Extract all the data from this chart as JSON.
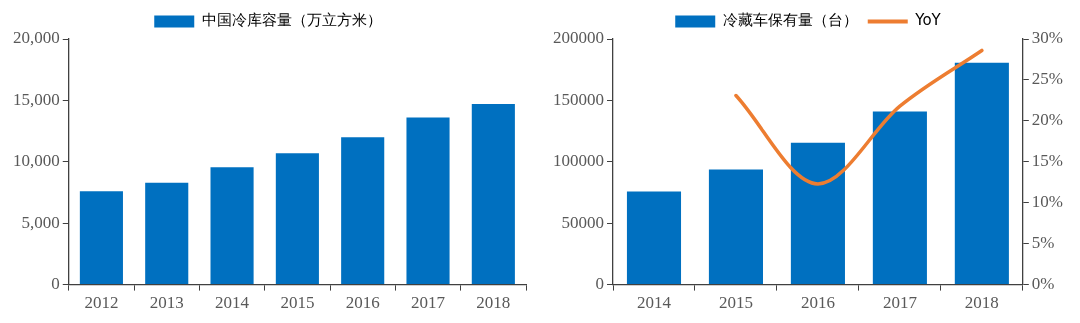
{
  "chart_data": [
    {
      "type": "bar",
      "categories": [
        "2012",
        "2013",
        "2014",
        "2015",
        "2016",
        "2017",
        "2018"
      ],
      "series": [
        {
          "name": "中国冷库容量（万立方米）",
          "color": "#0070c0",
          "values": [
            7600,
            8300,
            9550,
            10700,
            12000,
            13600,
            14700
          ]
        }
      ],
      "ylim": [
        0,
        20000
      ],
      "yticks": [
        {
          "value": 0,
          "label": "0"
        },
        {
          "value": 5000,
          "label": "5,000"
        },
        {
          "value": 10000,
          "label": "10,000"
        },
        {
          "value": 15000,
          "label": "15,000"
        },
        {
          "value": 20000,
          "label": "20,000"
        }
      ],
      "grid": false,
      "legend": "top"
    },
    {
      "type": "bar",
      "categories": [
        "2014",
        "2015",
        "2016",
        "2017",
        "2018"
      ],
      "series": [
        {
          "name": "冷藏车保有量（台）",
          "color": "#0070c0",
          "values": [
            75800,
            93800,
            115500,
            141000,
            180700
          ]
        },
        {
          "name": "YoY",
          "type": "line",
          "axis": "y2",
          "color": "#ed7d31",
          "values": [
            null,
            23.1,
            12.3,
            21.8,
            28.6
          ]
        }
      ],
      "ylim": [
        0,
        200000
      ],
      "yticks": [
        0,
        50000,
        100000,
        150000,
        200000
      ],
      "y2lim": [
        0,
        30
      ],
      "y2ticks": [
        {
          "value": 0,
          "label": "0%"
        },
        {
          "value": 5,
          "label": "5%"
        },
        {
          "value": 10,
          "label": "10%"
        },
        {
          "value": 15,
          "label": "15%"
        },
        {
          "value": 20,
          "label": "20%"
        },
        {
          "value": 25,
          "label": "25%"
        },
        {
          "value": 30,
          "label": "30%"
        }
      ],
      "grid": false,
      "legend": "top",
      "marker": "none"
    }
  ]
}
